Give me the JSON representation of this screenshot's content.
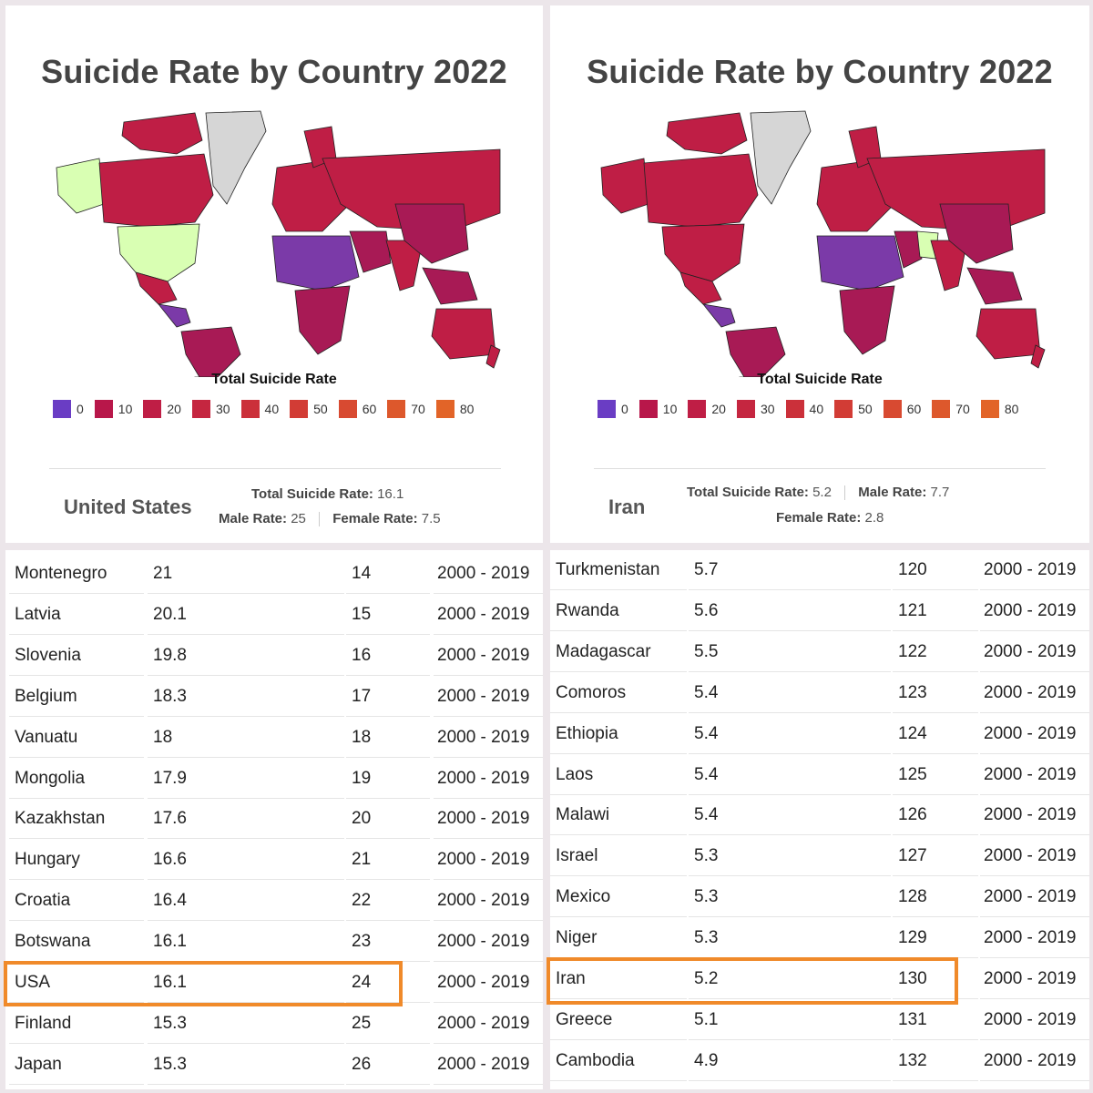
{
  "left": {
    "title": "Suicide Rate by Country 2022",
    "legend_title": "Total Suicide Rate",
    "legend": [
      {
        "label": "0",
        "color": "#6a3dc4"
      },
      {
        "label": "10",
        "color": "#b8174a"
      },
      {
        "label": "20",
        "color": "#bf1e45"
      },
      {
        "label": "30",
        "color": "#c52640"
      },
      {
        "label": "40",
        "color": "#cb303a"
      },
      {
        "label": "50",
        "color": "#d23c35"
      },
      {
        "label": "60",
        "color": "#d84a31"
      },
      {
        "label": "70",
        "color": "#dd582c"
      },
      {
        "label": "80",
        "color": "#e26428"
      }
    ],
    "country": "United States",
    "total_label": "Total Suicide Rate:",
    "total_value": "16.1",
    "male_label": "Male Rate:",
    "male_value": "25",
    "female_label": "Female Rate:",
    "female_value": "7.5",
    "highlight_color": "#d9ffb3",
    "rows": [
      [
        "Montenegro",
        "21",
        "14",
        "2000 - 2019"
      ],
      [
        "Latvia",
        "20.1",
        "15",
        "2000 - 2019"
      ],
      [
        "Slovenia",
        "19.8",
        "16",
        "2000 - 2019"
      ],
      [
        "Belgium",
        "18.3",
        "17",
        "2000 - 2019"
      ],
      [
        "Vanuatu",
        "18",
        "18",
        "2000 - 2019"
      ],
      [
        "Mongolia",
        "17.9",
        "19",
        "2000 - 2019"
      ],
      [
        "Kazakhstan",
        "17.6",
        "20",
        "2000 - 2019"
      ],
      [
        "Hungary",
        "16.6",
        "21",
        "2000 - 2019"
      ],
      [
        "Croatia",
        "16.4",
        "22",
        "2000 - 2019"
      ],
      [
        "Botswana",
        "16.1",
        "23",
        "2000 - 2019"
      ],
      [
        "USA",
        "16.1",
        "24",
        "2000 - 2019"
      ],
      [
        "Finland",
        "15.3",
        "25",
        "2000 - 2019"
      ],
      [
        "Japan",
        "15.3",
        "26",
        "2000 - 2019"
      ]
    ],
    "highlight_row": 10
  },
  "right": {
    "title": "Suicide Rate by Country 2022",
    "legend_title": "Total Suicide Rate",
    "legend": [
      {
        "label": "0",
        "color": "#6a3dc4"
      },
      {
        "label": "10",
        "color": "#b8174a"
      },
      {
        "label": "20",
        "color": "#bf1e45"
      },
      {
        "label": "30",
        "color": "#c52640"
      },
      {
        "label": "40",
        "color": "#cb303a"
      },
      {
        "label": "50",
        "color": "#d23c35"
      },
      {
        "label": "60",
        "color": "#d84a31"
      },
      {
        "label": "70",
        "color": "#dd582c"
      },
      {
        "label": "80",
        "color": "#e26428"
      }
    ],
    "country": "Iran",
    "total_label": "Total Suicide Rate:",
    "total_value": "5.2",
    "male_label": "Male Rate:",
    "male_value": "7.7",
    "female_label": "Female Rate:",
    "female_value": "2.8",
    "highlight_color": "#d9ffb3",
    "rows": [
      [
        "Turkmenistan",
        "5.7",
        "120",
        "2000 - 2019"
      ],
      [
        "Rwanda",
        "5.6",
        "121",
        "2000 - 2019"
      ],
      [
        "Madagascar",
        "5.5",
        "122",
        "2000 - 2019"
      ],
      [
        "Comoros",
        "5.4",
        "123",
        "2000 - 2019"
      ],
      [
        "Ethiopia",
        "5.4",
        "124",
        "2000 - 2019"
      ],
      [
        "Laos",
        "5.4",
        "125",
        "2000 - 2019"
      ],
      [
        "Malawi",
        "5.4",
        "126",
        "2000 - 2019"
      ],
      [
        "Israel",
        "5.3",
        "127",
        "2000 - 2019"
      ],
      [
        "Mexico",
        "5.3",
        "128",
        "2000 - 2019"
      ],
      [
        "Niger",
        "5.3",
        "129",
        "2000 - 2019"
      ],
      [
        "Iran",
        "5.2",
        "130",
        "2000 - 2019"
      ],
      [
        "Greece",
        "5.1",
        "131",
        "2000 - 2019"
      ],
      [
        "Cambodia",
        "4.9",
        "132",
        "2000 - 2019"
      ]
    ],
    "highlight_row": 10
  },
  "colors": {
    "land": "#bf1e45",
    "land_dark": "#a81a55",
    "low_rate": "#7b3aa8",
    "greenland": "#d6d6d6",
    "highlight_border": "#f08a2a"
  }
}
